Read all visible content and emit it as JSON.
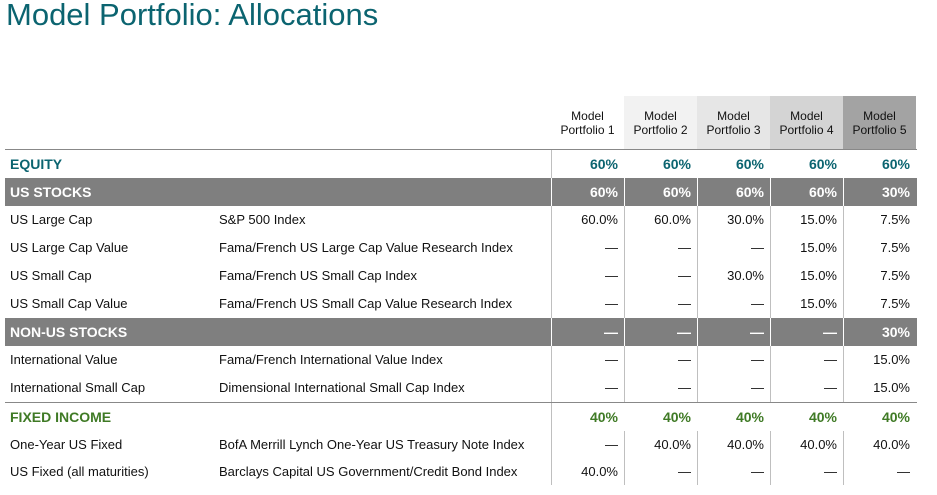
{
  "title": "Model Portfolio: Allocations",
  "columns": [
    "Model\nPortfolio 1",
    "Model\nPortfolio 2",
    "Model\nPortfolio 3",
    "Model\nPortfolio 4",
    "Model\nPortfolio 5"
  ],
  "column_lines": [
    [
      "Model",
      "Portfolio 1"
    ],
    [
      "Model",
      "Portfolio 2"
    ],
    [
      "Model",
      "Portfolio 3"
    ],
    [
      "Model",
      "Portfolio 4"
    ],
    [
      "Model",
      "Portfolio 5"
    ]
  ],
  "colors": {
    "title": "#0b6470",
    "equity": "#0b6470",
    "fixed_income": "#3f7a25",
    "band": "#7f7f7f",
    "header_shades": [
      "#ffffff",
      "#f2f2f2",
      "#e6e6e6",
      "#d4d4d4",
      "#a3a3a3"
    ]
  },
  "rows": [
    {
      "kind": "section",
      "style": "equity",
      "name": "EQUITY",
      "index": "",
      "values": [
        "60%",
        "60%",
        "60%",
        "60%",
        "60%"
      ]
    },
    {
      "kind": "band",
      "name": "US STOCKS",
      "index": "",
      "values": [
        "60%",
        "60%",
        "60%",
        "60%",
        "30%"
      ]
    },
    {
      "kind": "data",
      "name": "US Large Cap",
      "index": "S&P 500 Index",
      "values": [
        "60.0%",
        "60.0%",
        "30.0%",
        "15.0%",
        "7.5%"
      ]
    },
    {
      "kind": "data",
      "name": "US Large Cap Value",
      "index": "Fama/French US Large Cap Value Research Index",
      "values": [
        "—",
        "—",
        "—",
        "15.0%",
        "7.5%"
      ]
    },
    {
      "kind": "data",
      "name": "US Small Cap",
      "index": "Fama/French US Small Cap Index",
      "values": [
        "—",
        "—",
        "30.0%",
        "15.0%",
        "7.5%"
      ]
    },
    {
      "kind": "data",
      "name": "US Small Cap Value",
      "index": "Fama/French US Small Cap Value Research Index",
      "values": [
        "—",
        "—",
        "—",
        "15.0%",
        "7.5%"
      ]
    },
    {
      "kind": "band",
      "name": "NON-US STOCKS",
      "index": "",
      "values": [
        "—",
        "—",
        "—",
        "—",
        "30%"
      ]
    },
    {
      "kind": "data",
      "name": "International Value",
      "index": "Fama/French International Value Index",
      "values": [
        "—",
        "—",
        "—",
        "—",
        "15.0%"
      ]
    },
    {
      "kind": "data",
      "name": "International Small Cap",
      "index": "Dimensional International Small Cap Index",
      "values": [
        "—",
        "—",
        "—",
        "—",
        "15.0%"
      ]
    },
    {
      "kind": "section",
      "style": "fixed",
      "name": "FIXED INCOME",
      "index": "",
      "values": [
        "40%",
        "40%",
        "40%",
        "40%",
        "40%"
      ]
    },
    {
      "kind": "data",
      "name": "One-Year US Fixed",
      "index": "BofA Merrill Lynch One-Year US Treasury Note Index",
      "values": [
        "—",
        "40.0%",
        "40.0%",
        "40.0%",
        "40.0%"
      ]
    },
    {
      "kind": "data",
      "name": "US Fixed (all maturities)",
      "index": "Barclays Capital US Government/Credit Bond Index",
      "values": [
        "40.0%",
        "—",
        "—",
        "—",
        "—"
      ]
    }
  ]
}
